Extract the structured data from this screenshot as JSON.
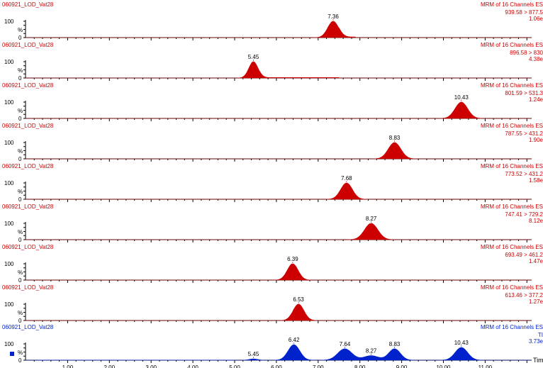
{
  "chart_data": {
    "type": "area",
    "x_ticks": [
      "1.00",
      "2.00",
      "3.00",
      "4.00",
      "5.00",
      "6.00",
      "7.00",
      "8.00",
      "9.00",
      "10.00",
      "11.00"
    ],
    "x_label": "Time",
    "xlim": [
      0.0,
      12.0
    ],
    "ylim": [
      0,
      100
    ],
    "y_ticks": [
      "100",
      "%",
      "0"
    ],
    "panels": [
      {
        "title": "060921_LOD_Vat28",
        "channel": "MRM of 16 Channels ES",
        "transition": "939.58 > 877.5",
        "intensity": "1.06e",
        "color": "#cc0000",
        "peaks": [
          {
            "rt": 7.36,
            "height": 100,
            "width": 0.13,
            "label": "7.36"
          }
        ],
        "baseline": [
          [
            7.5,
            7.9,
            4
          ]
        ]
      },
      {
        "title": "060921_LOD_Vat28",
        "channel": "MRM of 16 Channels ES",
        "transition": "896.58 > 830",
        "intensity": "4.38e",
        "color": "#cc0000",
        "peaks": [
          {
            "rt": 5.45,
            "height": 100,
            "width": 0.11,
            "label": "5.45"
          }
        ],
        "baseline": [
          [
            5.6,
            7.5,
            3
          ]
        ]
      },
      {
        "title": "060921_LOD_Vat28",
        "channel": "MRM of 16 Channels ES",
        "transition": "801.59 > 531.3",
        "intensity": "1.24e",
        "color": "#cc0000",
        "peaks": [
          {
            "rt": 10.43,
            "height": 100,
            "width": 0.15,
            "label": "10.43"
          }
        ],
        "baseline": []
      },
      {
        "title": "060921_LOD_Vat28",
        "channel": "MRM of 16 Channels ES",
        "transition": "787.55 > 431.2",
        "intensity": "1.90e",
        "color": "#cc0000",
        "peaks": [
          {
            "rt": 8.83,
            "height": 100,
            "width": 0.15,
            "label": "8.83"
          }
        ],
        "baseline": []
      },
      {
        "title": "060921_LOD_Vat28",
        "channel": "MRM of 16 Channels ES",
        "transition": "773.52 > 431.2",
        "intensity": "1.58e",
        "color": "#cc0000",
        "peaks": [
          {
            "rt": 7.68,
            "height": 100,
            "width": 0.14,
            "label": "7.68"
          }
        ],
        "baseline": []
      },
      {
        "title": "060921_LOD_Vat28",
        "channel": "MRM of 16 Channels ES",
        "transition": "747.41 > 729.2",
        "intensity": "8.12e",
        "color": "#cc0000",
        "peaks": [
          {
            "rt": 8.27,
            "height": 100,
            "width": 0.16,
            "label": "8.27"
          }
        ],
        "baseline": []
      },
      {
        "title": "060921_LOD_Vat28",
        "channel": "MRM of 16 Channels ES",
        "transition": "693.49 > 461.2",
        "intensity": "1.47e",
        "color": "#cc0000",
        "peaks": [
          {
            "rt": 6.39,
            "height": 100,
            "width": 0.13,
            "label": "6.39"
          }
        ],
        "baseline": []
      },
      {
        "title": "060921_LOD_Vat28",
        "channel": "MRM of 16 Channels ES",
        "transition": "613.46 > 377.2",
        "intensity": "1.27e",
        "color": "#cc0000",
        "peaks": [
          {
            "rt": 6.53,
            "height": 100,
            "width": 0.13,
            "label": "6.53"
          }
        ],
        "baseline": []
      },
      {
        "title": "060921_LOD_Vat28",
        "channel": "MRM of 16 Channels ES",
        "transition": "TI",
        "intensity": "3.73e",
        "color": "#0022cc",
        "peaks": [
          {
            "rt": 5.45,
            "height": 8,
            "width": 0.1,
            "label": "5.45"
          },
          {
            "rt": 6.42,
            "height": 95,
            "width": 0.14,
            "label": "6.42"
          },
          {
            "rt": 7.64,
            "height": 70,
            "width": 0.17,
            "label": "7.64"
          },
          {
            "rt": 8.27,
            "height": 28,
            "width": 0.18,
            "label": "8.27"
          },
          {
            "rt": 8.83,
            "height": 70,
            "width": 0.14,
            "label": "8.83"
          },
          {
            "rt": 10.43,
            "height": 78,
            "width": 0.15,
            "label": "10.43"
          }
        ],
        "baseline": [
          [
            0.3,
            5.0,
            1
          ]
        ]
      }
    ]
  }
}
